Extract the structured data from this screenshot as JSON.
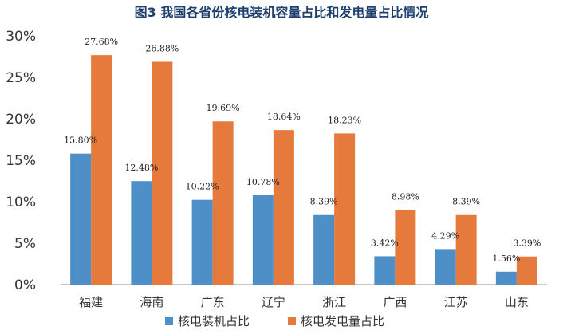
{
  "chart_data": {
    "type": "bar",
    "title": "图3 我国各省份核电装机容量占比和发电量占比情况",
    "categories": [
      "福建",
      "海南",
      "广东",
      "辽宁",
      "浙江",
      "广西",
      "江苏",
      "山东"
    ],
    "series": [
      {
        "name": "核电装机占比",
        "color": "#4f8fc8",
        "values": [
          15.8,
          12.48,
          10.22,
          10.78,
          8.39,
          3.42,
          4.29,
          1.56
        ],
        "labels": [
          "15.80%",
          "12.48%",
          "10.22%",
          "10.78%",
          "8.39%",
          "3.42%",
          "4.29%",
          "1.56%"
        ]
      },
      {
        "name": "核电发电量占比",
        "color": "#e57a3c",
        "values": [
          27.68,
          26.88,
          19.69,
          18.64,
          18.23,
          8.98,
          8.39,
          3.39
        ],
        "labels": [
          "27.68%",
          "26.88%",
          "19.69%",
          "18.64%",
          "18.23%",
          "8.98%",
          "8.39%",
          "3.39%"
        ]
      }
    ],
    "yticks": [
      "0%",
      "5%",
      "10%",
      "15%",
      "20%",
      "25%",
      "30%"
    ],
    "ylim": [
      0,
      30
    ],
    "xlabel": "",
    "ylabel": "",
    "grid": false,
    "legend": "bottom"
  }
}
